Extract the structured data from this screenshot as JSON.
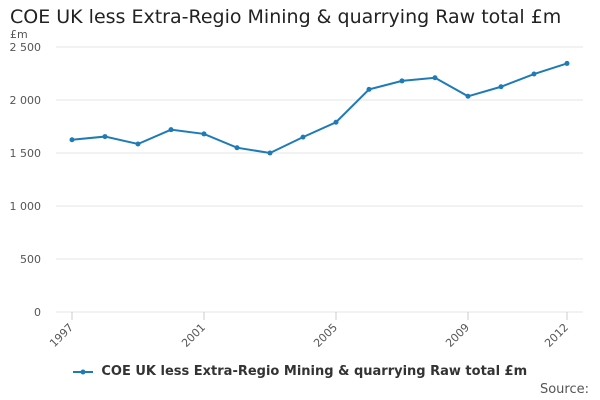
{
  "chart_data": {
    "type": "line",
    "title": "COE UK less Extra-Regio Mining & quarrying Raw total £m",
    "unit_label": "£m",
    "xlabel": "",
    "ylabel": "£m",
    "x": [
      1997,
      1998,
      1999,
      2000,
      2001,
      2002,
      2003,
      2004,
      2005,
      2006,
      2007,
      2008,
      2009,
      2010,
      2011,
      2012
    ],
    "x_tick_labels": [
      "1997",
      "2001",
      "2005",
      "2009",
      "2012"
    ],
    "y_tick_labels": [
      "0",
      "500",
      "1 000",
      "1 500",
      "2 000",
      "2 500"
    ],
    "y_ticks": [
      0,
      500,
      1000,
      1500,
      2000,
      2500
    ],
    "ylim": [
      0,
      2500
    ],
    "series": [
      {
        "name": "COE UK less Extra-Regio Mining & quarrying Raw total £m",
        "color": "#1f7bb6",
        "values": [
          1625,
          1655,
          1585,
          1720,
          1680,
          1550,
          1500,
          1650,
          1790,
          2100,
          2180,
          2210,
          2035,
          2125,
          2245,
          2345
        ]
      }
    ],
    "legend_position": "bottom",
    "source_label": "Source:"
  }
}
